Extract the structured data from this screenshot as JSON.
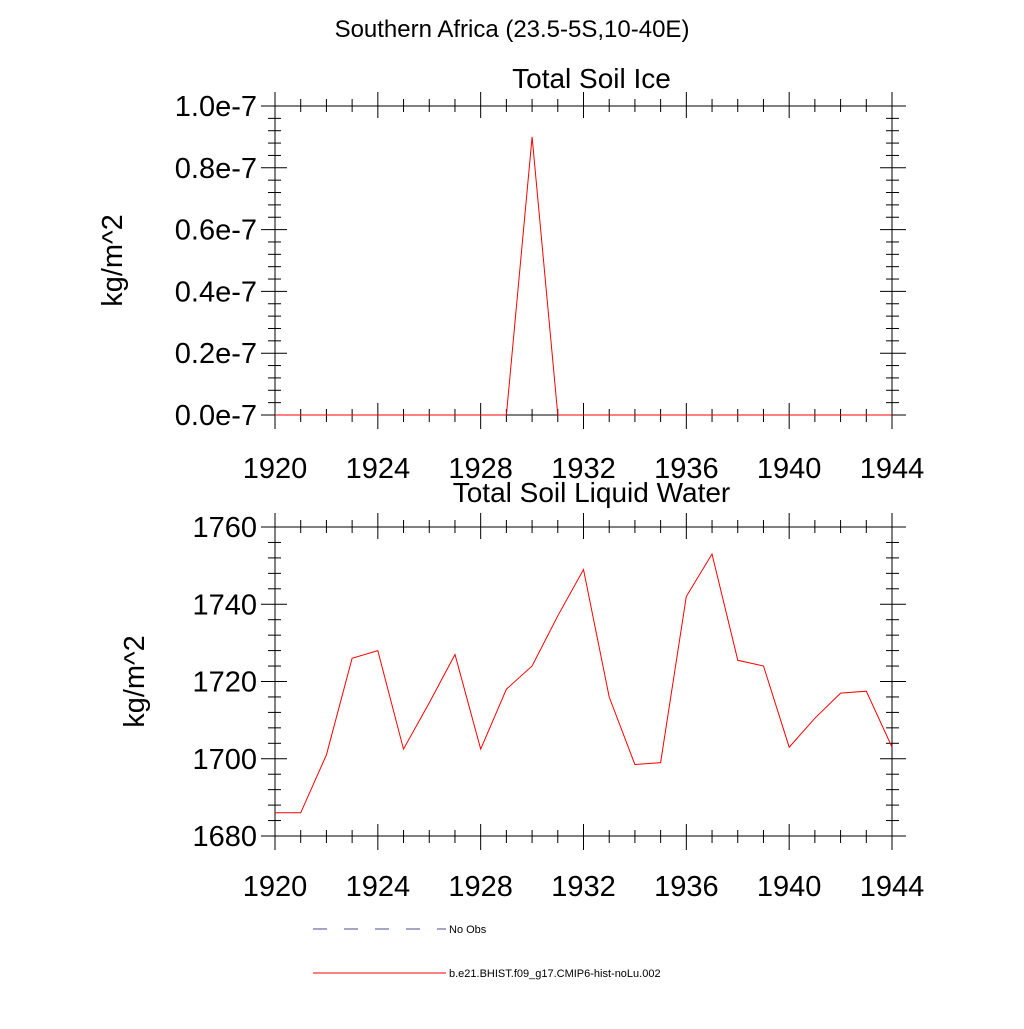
{
  "figure": {
    "suptitle": "Southern Africa (23.5-5S,10-40E)"
  },
  "chart_data": [
    {
      "type": "line",
      "title": "Total Soil Ice",
      "xlabel": "",
      "ylabel": "kg/m^2",
      "xlim": [
        1920,
        1944
      ],
      "ylim": [
        0.0,
        1e-07
      ],
      "x_ticks": [
        1920,
        1924,
        1928,
        1932,
        1936,
        1940,
        1944
      ],
      "x_tick_labels": [
        "1920",
        "1924",
        "1928",
        "1932",
        "1936",
        "1940",
        "1944"
      ],
      "y_ticks": [
        0.0,
        2e-08,
        4e-08,
        6e-08,
        8e-08,
        1e-07
      ],
      "y_tick_labels": [
        "0.0e-7",
        "0.2e-7",
        "0.4e-7",
        "0.6e-7",
        "0.8e-7",
        "1.0e-7"
      ],
      "grid": false,
      "series": [
        {
          "name": "b.e21.BHIST.f09_g17.CMIP6-hist-noLu.002",
          "color": "#ff0000",
          "x": [
            1920,
            1921,
            1922,
            1923,
            1924,
            1925,
            1926,
            1927,
            1928,
            1929,
            1930,
            1931,
            1932,
            1933,
            1934,
            1935,
            1936,
            1937,
            1938,
            1939,
            1940,
            1941,
            1942,
            1943,
            1944
          ],
          "values": [
            0,
            0,
            0,
            0,
            0,
            0,
            0,
            0,
            0,
            0,
            9e-08,
            0,
            0,
            0,
            0,
            0,
            0,
            0,
            0,
            0,
            0,
            0,
            0,
            0,
            0
          ]
        }
      ]
    },
    {
      "type": "line",
      "title": "Total Soil Liquid Water",
      "xlabel": "",
      "ylabel": "kg/m^2",
      "xlim": [
        1920,
        1944
      ],
      "ylim": [
        1680,
        1760
      ],
      "x_ticks": [
        1920,
        1924,
        1928,
        1932,
        1936,
        1940,
        1944
      ],
      "x_tick_labels": [
        "1920",
        "1924",
        "1928",
        "1932",
        "1936",
        "1940",
        "1944"
      ],
      "y_ticks": [
        1680,
        1700,
        1720,
        1740,
        1760
      ],
      "y_tick_labels": [
        "1680",
        "1700",
        "1720",
        "1740",
        "1760"
      ],
      "grid": false,
      "series": [
        {
          "name": "b.e21.BHIST.f09_g17.CMIP6-hist-noLu.002",
          "color": "#ff0000",
          "x": [
            1920,
            1921,
            1922,
            1923,
            1924,
            1925,
            1926,
            1927,
            1928,
            1929,
            1930,
            1931,
            1932,
            1933,
            1934,
            1935,
            1936,
            1937,
            1938,
            1939,
            1940,
            1941,
            1942,
            1943,
            1944
          ],
          "values": [
            1686,
            1686,
            1701,
            1726,
            1728,
            1702.5,
            1714.5,
            1727,
            1702.5,
            1718,
            1724,
            1737,
            1749,
            1716,
            1698.5,
            1699,
            1742,
            1753,
            1725.5,
            1724,
            1703,
            1710.5,
            1717,
            1717.5,
            1703
          ]
        }
      ]
    }
  ],
  "legend": {
    "placement": "bottom-center",
    "entries": [
      {
        "label": "No Obs",
        "color": "#4b4b8c",
        "style": "dashed"
      },
      {
        "label": "b.e21.BHIST.f09_g17.CMIP6-hist-noLu.002",
        "color": "#ff0000",
        "style": "solid"
      }
    ]
  }
}
